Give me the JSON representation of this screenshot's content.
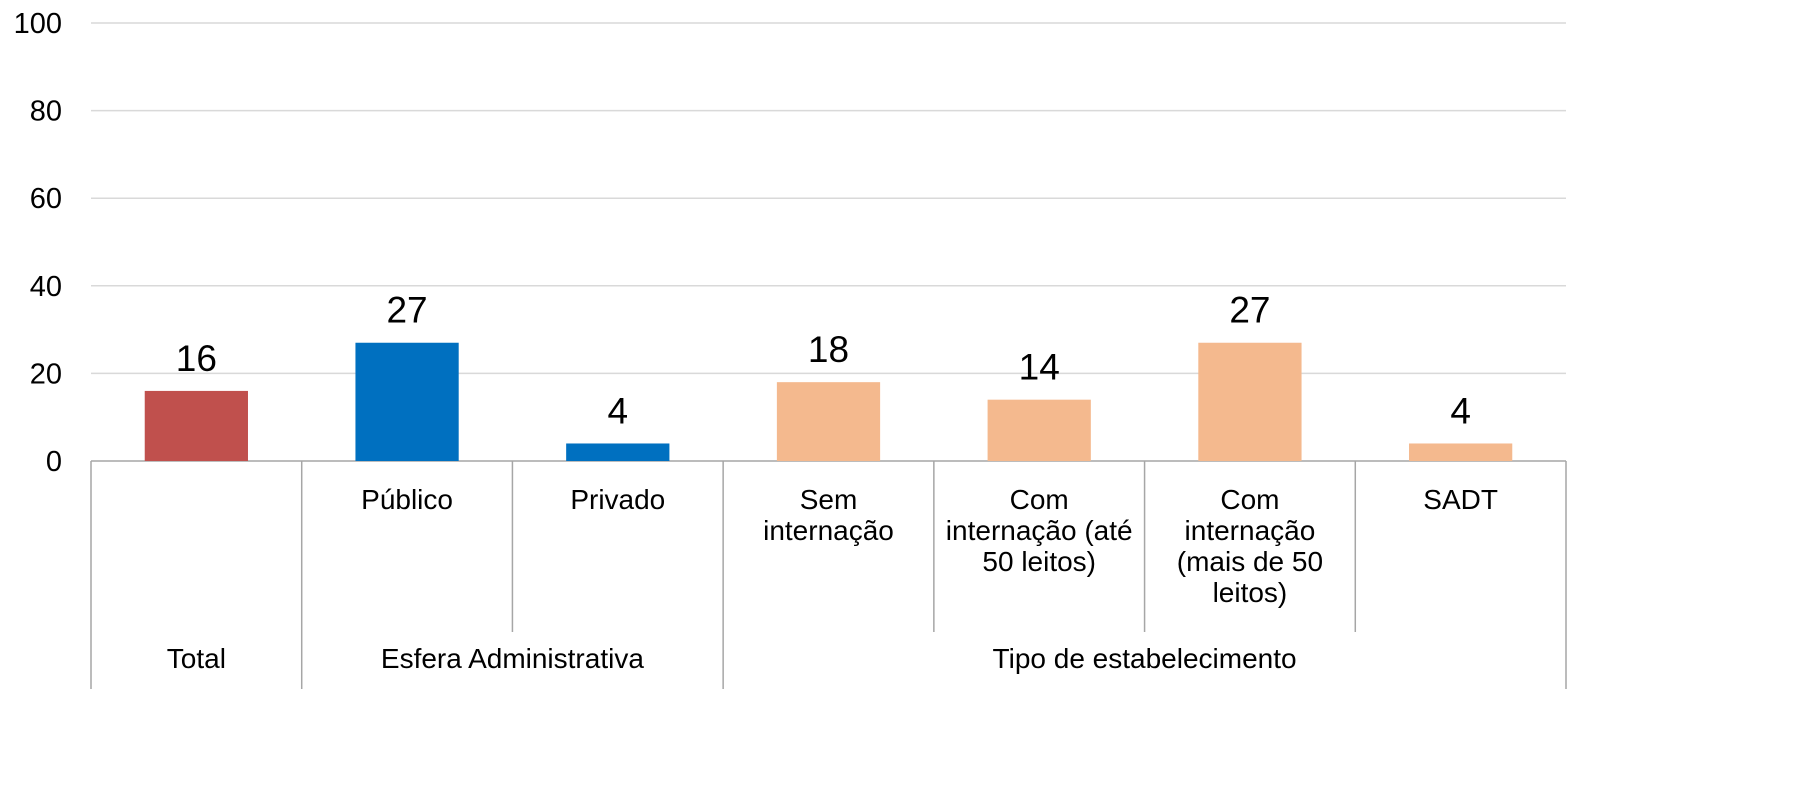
{
  "chart_data": {
    "type": "bar",
    "categories": [
      null,
      "Público",
      "Privado",
      "Sem internação",
      "Com internação (até 50 leitos)",
      "Com internação (mais de 50 leitos)",
      "SADT"
    ],
    "values": [
      16,
      27,
      4,
      18,
      14,
      27,
      4
    ],
    "colors": [
      "#c0504d",
      "#0070c0",
      "#0070c0",
      "#f4b98e",
      "#f4b98e",
      "#f4b98e",
      "#f4b98e"
    ],
    "groups": [
      {
        "label": "Total",
        "span": 1
      },
      {
        "label": "Esfera Administrativa",
        "span": 2
      },
      {
        "label": "Tipo de estabelecimento",
        "span": 4
      }
    ],
    "ylim": [
      0,
      100
    ],
    "yticks": [
      0,
      20,
      40,
      60,
      80,
      100
    ],
    "grid": true
  }
}
